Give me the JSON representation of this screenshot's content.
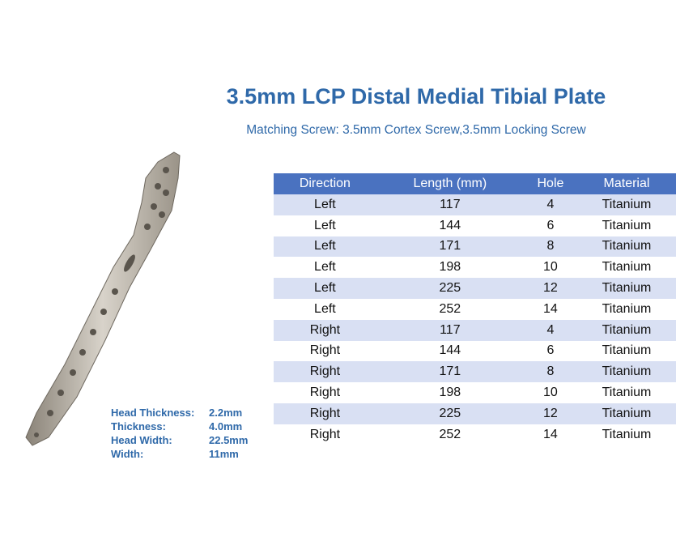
{
  "header": {
    "title": "3.5mm LCP Distal Medial Tibial Plate",
    "subtitle": "Matching Screw: 3.5mm Cortex Screw,3.5mm Locking Screw"
  },
  "table": {
    "columns": [
      "Direction",
      "Length (mm)",
      "Hole",
      "Material"
    ],
    "rows": [
      [
        "Left",
        117,
        4,
        "Titanium"
      ],
      [
        "Left",
        144,
        6,
        "Titanium"
      ],
      [
        "Left",
        171,
        8,
        "Titanium"
      ],
      [
        "Left",
        198,
        10,
        "Titanium"
      ],
      [
        "Left",
        225,
        12,
        "Titanium"
      ],
      [
        "Left",
        252,
        14,
        "Titanium"
      ],
      [
        "Right",
        117,
        4,
        "Titanium"
      ],
      [
        "Right",
        144,
        6,
        "Titanium"
      ],
      [
        "Right",
        171,
        8,
        "Titanium"
      ],
      [
        "Right",
        198,
        10,
        "Titanium"
      ],
      [
        "Right",
        225,
        12,
        "Titanium"
      ],
      [
        "Right",
        252,
        14,
        "Titanium"
      ]
    ]
  },
  "specs": [
    {
      "label": "Head Thickness:",
      "value": "2.2mm"
    },
    {
      "label": "Thickness:",
      "value": "4.0mm"
    },
    {
      "label": "Head Width:",
      "value": "22.5mm"
    },
    {
      "label": "Width:",
      "value": "11mm"
    }
  ]
}
